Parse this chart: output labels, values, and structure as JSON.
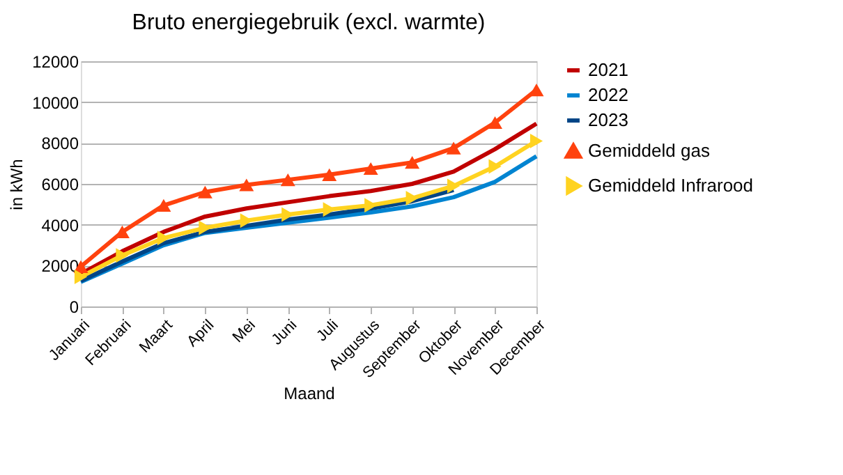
{
  "chart_data": {
    "type": "line",
    "title": "Bruto energiegebruik (excl. warmte)",
    "xlabel": "Maand",
    "ylabel": "in kWh",
    "categories": [
      "Januari",
      "Februari",
      "Maart",
      "April",
      "Mei",
      "Juni",
      "Juli",
      "Augustus",
      "September",
      "Oktober",
      "November",
      "December"
    ],
    "series": [
      {
        "name": "2021",
        "color": "#c00000",
        "marker": "none",
        "values": [
          1600,
          2700,
          3650,
          4400,
          4800,
          5100,
          5400,
          5650,
          6000,
          6600,
          7700,
          8950
        ]
      },
      {
        "name": "2022",
        "color": "#0084d1",
        "marker": "none",
        "values": [
          1200,
          2100,
          3000,
          3600,
          3850,
          4100,
          4350,
          4600,
          4900,
          5350,
          6100,
          7350
        ]
      },
      {
        "name": "2023",
        "color": "#004586",
        "marker": "none",
        "values": [
          1250,
          2200,
          3100,
          3650,
          3950,
          4250,
          4500,
          4800,
          5150,
          5700,
          null,
          null
        ]
      },
      {
        "name": "Gemiddeld gas",
        "color": "#ff420e",
        "marker": "triangle",
        "values": [
          1950,
          3650,
          4950,
          5600,
          5950,
          6200,
          6450,
          6750,
          7050,
          7750,
          9000,
          10600
        ]
      },
      {
        "name": "Gemiddeld Infrarood",
        "color": "#ffd320",
        "marker": "triangle-right",
        "values": [
          1450,
          2500,
          3350,
          3850,
          4200,
          4500,
          4750,
          4950,
          5300,
          5900,
          6850,
          8100
        ]
      }
    ],
    "ylim": [
      0,
      12000
    ],
    "yticks": [
      0,
      2000,
      4000,
      6000,
      8000,
      10000,
      12000
    ],
    "grid": "y",
    "legend": "right"
  }
}
